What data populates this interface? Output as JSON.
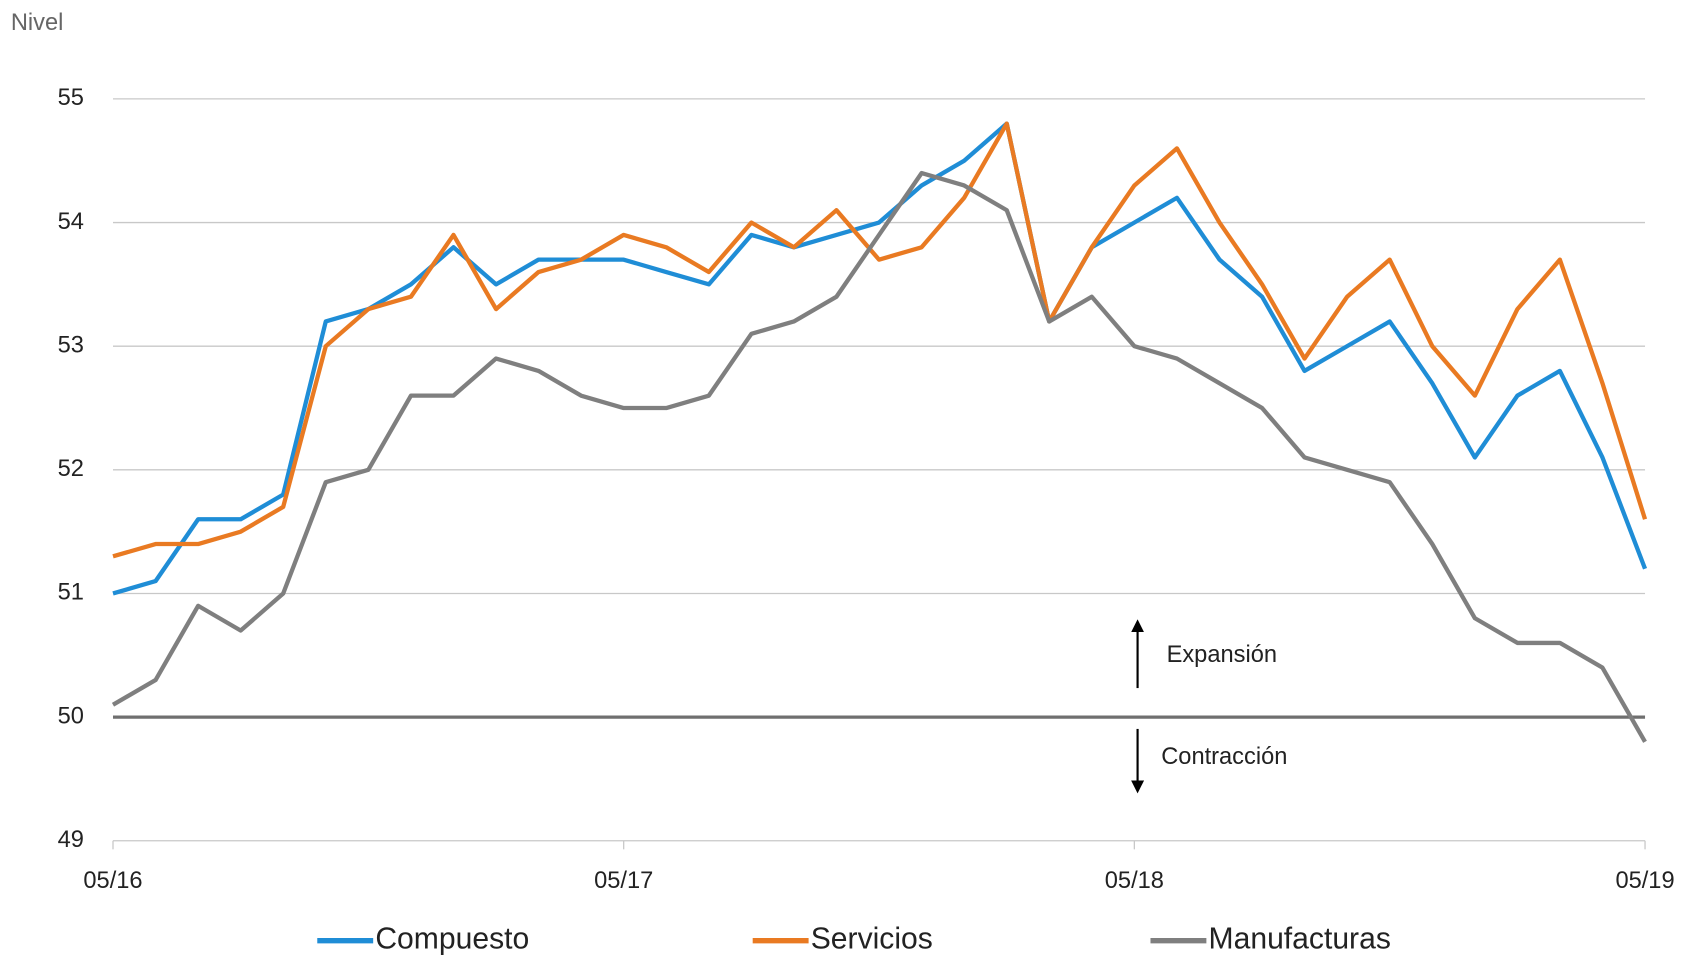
{
  "chart_data": {
    "type": "line",
    "y_label": "Nivel",
    "categories": [
      "05/16",
      null,
      null,
      null,
      null,
      null,
      null,
      null,
      null,
      null,
      null,
      null,
      "05/17",
      null,
      null,
      null,
      null,
      null,
      null,
      null,
      null,
      null,
      null,
      null,
      "05/18",
      null,
      null,
      null,
      null,
      null,
      null,
      null,
      null,
      null,
      null,
      null,
      "05/19"
    ],
    "series": [
      {
        "name": "Compuesto",
        "color": "#1f8dd6",
        "values": [
          51.0,
          51.1,
          51.6,
          51.6,
          51.8,
          53.2,
          53.3,
          53.5,
          53.8,
          53.5,
          53.7,
          53.7,
          53.7,
          53.6,
          53.5,
          53.9,
          53.8,
          53.9,
          54.0,
          54.3,
          54.5,
          54.8,
          53.2,
          53.8,
          54.0,
          54.2,
          53.7,
          53.4,
          52.8,
          53.0,
          53.2,
          52.7,
          52.1,
          52.6,
          52.8,
          52.1,
          51.2
        ]
      },
      {
        "name": "Servicios",
        "color": "#e97a22",
        "values": [
          51.3,
          51.4,
          51.4,
          51.5,
          51.7,
          53.0,
          53.3,
          53.4,
          53.9,
          53.3,
          53.6,
          53.7,
          53.9,
          53.8,
          53.6,
          54.0,
          53.8,
          54.1,
          53.7,
          53.8,
          54.2,
          54.8,
          53.2,
          53.8,
          54.3,
          54.6,
          54.0,
          53.5,
          52.9,
          53.4,
          53.7,
          53.0,
          52.6,
          53.3,
          53.7,
          52.7,
          51.6
        ]
      },
      {
        "name": "Manufacturas",
        "color": "#7f7f7f",
        "values": [
          50.1,
          50.3,
          50.9,
          50.7,
          51.0,
          51.9,
          52.0,
          52.6,
          52.6,
          52.9,
          52.8,
          52.6,
          52.5,
          52.5,
          52.6,
          53.1,
          53.2,
          53.4,
          53.9,
          54.4,
          54.3,
          54.1,
          53.2,
          53.4,
          53.0,
          52.9,
          52.7,
          52.5,
          52.1,
          52.0,
          51.9,
          51.4,
          50.8,
          50.6,
          50.6,
          50.4,
          49.8
        ]
      }
    ],
    "ylim": [
      49,
      55
    ],
    "yticks": [
      49,
      50,
      51,
      52,
      53,
      54,
      55
    ],
    "grid": true,
    "threshold": 50,
    "annotations": [
      "Expansión",
      "Contracción"
    ],
    "legend": "bottom"
  }
}
